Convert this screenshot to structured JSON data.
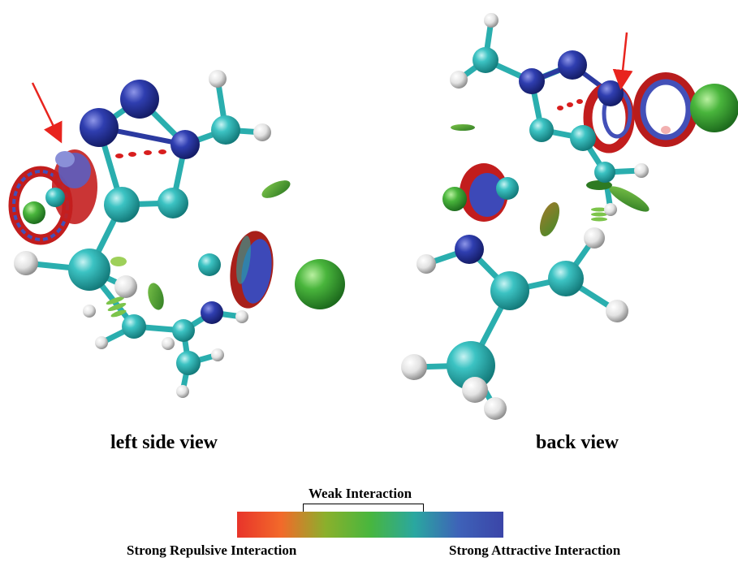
{
  "views": {
    "left_label": "left side view",
    "back_label": "back view"
  },
  "legend": {
    "weak": "Weak Interaction",
    "repulsive": "Strong Repulsive Interaction",
    "attractive": "Strong Attractive Interaction",
    "gradient_colors": [
      "#e8342a",
      "#f26a2a",
      "#8ab02c",
      "#48b63e",
      "#2aa7a0",
      "#3e62b8",
      "#3b45a8"
    ]
  },
  "colors": {
    "carbon": "#2fb6b6",
    "nitrogen": "#2b3aa0",
    "hydrogen": "#f2f2f2",
    "arrow": "#e8241e",
    "isosurface_green": "#3fb03f",
    "isosurface_red": "#d81e1e",
    "isosurface_blue": "#3b46b0"
  }
}
